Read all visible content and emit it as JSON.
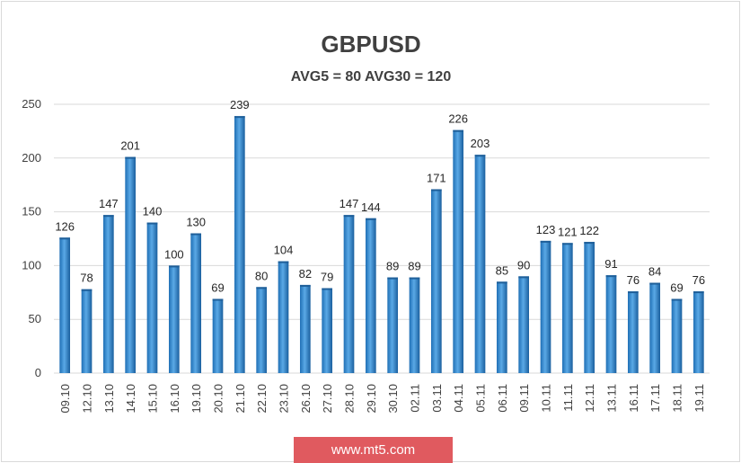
{
  "colors": {
    "bar": "#3f8fd0",
    "bar_dark": "#1f5f99",
    "grid": "#d9d9d9",
    "watermark_bg": "#e05a5f"
  },
  "chart_data": {
    "type": "bar",
    "title": "GBPUSD",
    "subtitle": "AVG5 = 80 AVG30 = 120",
    "categories": [
      "09.10",
      "12.10",
      "13.10",
      "14.10",
      "15.10",
      "16.10",
      "19.10",
      "20.10",
      "21.10",
      "22.10",
      "23.10",
      "26.10",
      "27.10",
      "28.10",
      "29.10",
      "30.10",
      "02.11",
      "03.11",
      "04.11",
      "05.11",
      "06.11",
      "09.11",
      "10.11",
      "11.11",
      "12.11",
      "13.11",
      "16.11",
      "17.11",
      "18.11",
      "19.11"
    ],
    "values": [
      126,
      78,
      147,
      201,
      140,
      100,
      130,
      69,
      239,
      80,
      104,
      82,
      79,
      147,
      144,
      89,
      89,
      171,
      226,
      203,
      85,
      90,
      123,
      121,
      122,
      91,
      76,
      84,
      69,
      76
    ],
    "ylim": [
      0,
      250
    ],
    "yticks": [
      0,
      50,
      100,
      150,
      200,
      250
    ],
    "grid": true,
    "legend": "none"
  },
  "watermark": "www.mt5.com"
}
